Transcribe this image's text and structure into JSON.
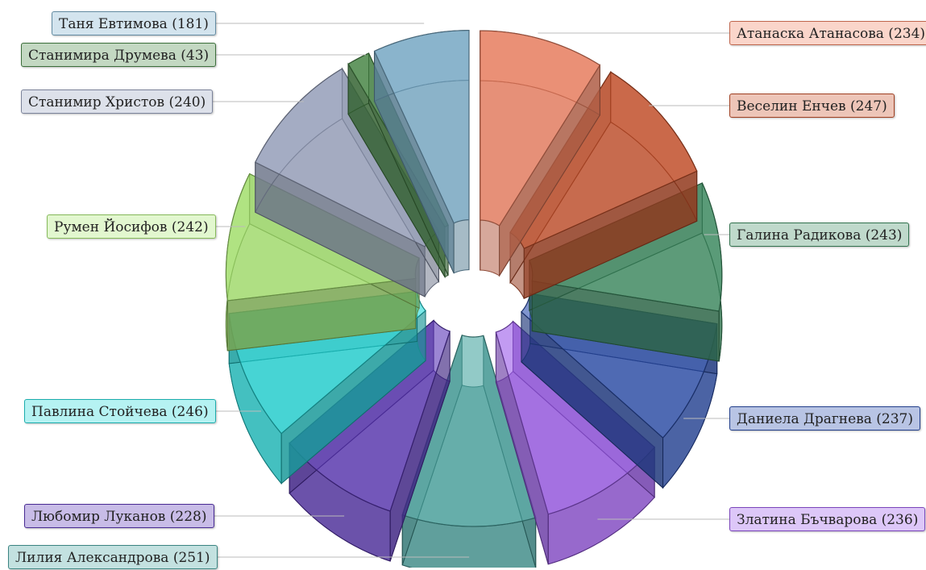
{
  "chart_data": {
    "type": "pie",
    "style": "exploded 3d pie",
    "slices": [
      {
        "name": "Атанаска Атанасова",
        "value": 234,
        "label": "Атанаска Атанасова (234)",
        "color": "#f08060"
      },
      {
        "name": "Веселин Енчев",
        "value": 247,
        "label": "Веселин Енчев (247)",
        "color": "#c8502a"
      },
      {
        "name": "Галина Радикова",
        "value": 243,
        "label": "Галина Радикова (243)",
        "color": "#3e8e62"
      },
      {
        "name": "Даниела Драгнева",
        "value": 237,
        "label": "Даниела Драгнева (237)",
        "color": "#2b4fae"
      },
      {
        "name": "Златина Бъчварова",
        "value": 236,
        "label": "Златина Бъчварова (236)",
        "color": "#9a58ea"
      },
      {
        "name": "Лилия Александрова",
        "value": 251,
        "label": "Лилия Александрова (251)",
        "color": "#4aa6a2"
      },
      {
        "name": "Любомир Луканов",
        "value": 228,
        "label": "Любомир Луканов (228)",
        "color": "#5a35b8"
      },
      {
        "name": "Павлина Стойчева",
        "value": 246,
        "label": "Павлина Стойчева (246)",
        "color": "#22d8d8"
      },
      {
        "name": "Румен Йосифов",
        "value": 242,
        "label": "Румен Йосифов (242)",
        "color": "#a8e870"
      },
      {
        "name": "Станимир Христов",
        "value": 240,
        "label": "Станимир Христов (240)",
        "color": "#9aa4c0"
      },
      {
        "name": "Станимира Друмева",
        "value": 43,
        "label": "Станимира Друмева (43)",
        "color": "#4a8a48"
      },
      {
        "name": "Таня Евтимова",
        "value": 181,
        "label": "Таня Евтимова (181)",
        "color": "#7aaecb"
      }
    ]
  }
}
